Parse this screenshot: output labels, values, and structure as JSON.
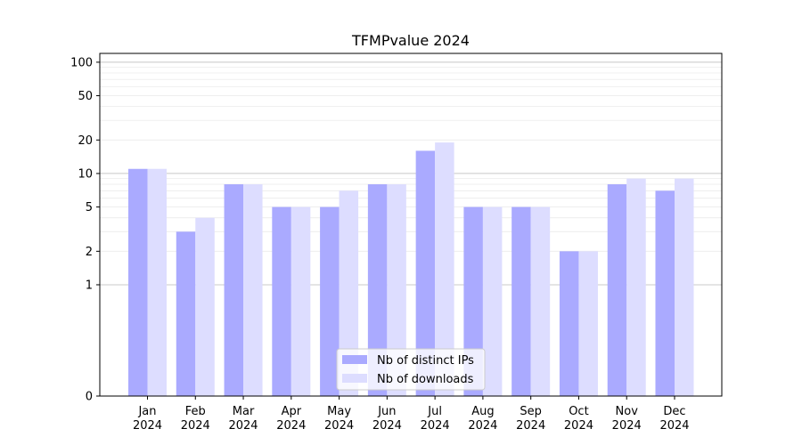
{
  "chart_data": {
    "type": "bar",
    "title": "TFMPvalue 2024",
    "xlabel": "",
    "ylabel": "",
    "categories": [
      [
        "Jan",
        "2024"
      ],
      [
        "Feb",
        "2024"
      ],
      [
        "Mar",
        "2024"
      ],
      [
        "Apr",
        "2024"
      ],
      [
        "May",
        "2024"
      ],
      [
        "Jun",
        "2024"
      ],
      [
        "Jul",
        "2024"
      ],
      [
        "Aug",
        "2024"
      ],
      [
        "Sep",
        "2024"
      ],
      [
        "Oct",
        "2024"
      ],
      [
        "Nov",
        "2024"
      ],
      [
        "Dec",
        "2024"
      ]
    ],
    "series": [
      {
        "name": "Nb of distinct IPs",
        "color": "#aaaaff",
        "values": [
          11,
          3,
          8,
          5,
          5,
          8,
          16,
          5,
          5,
          2,
          8,
          7
        ]
      },
      {
        "name": "Nb of downloads",
        "color": "#ddddff",
        "values": [
          11,
          4,
          8,
          5,
          7,
          8,
          19,
          5,
          5,
          2,
          9,
          9
        ]
      }
    ],
    "yscale": "symlog",
    "ylim": [
      0,
      120
    ],
    "yticks": [
      0,
      1,
      2,
      5,
      10,
      20,
      50,
      100
    ],
    "grid": true,
    "legend_position": "lower center"
  }
}
